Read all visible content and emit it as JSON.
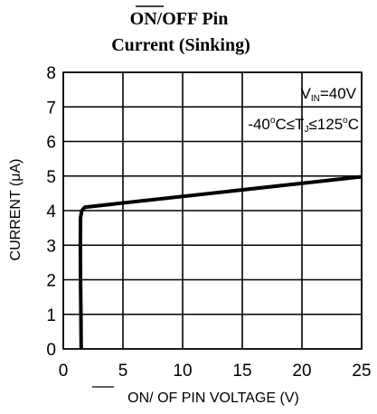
{
  "chart_data": {
    "type": "line",
    "title": {
      "overlined": "ON",
      "rest": "/OFF Pin",
      "line2": "Current (Sinking)"
    },
    "xlabel": {
      "overlined": "ON",
      "rest": "/ OF PIN VOLTAGE (V)"
    },
    "ylabel": "CURRENT (μA)",
    "xlim": [
      0,
      25
    ],
    "ylim": [
      0,
      8
    ],
    "x_ticks": [
      0,
      5,
      10,
      15,
      20,
      25
    ],
    "y_ticks": [
      0,
      1,
      2,
      3,
      4,
      5,
      6,
      7,
      8
    ],
    "grid": true,
    "annotations": {
      "line1": {
        "main": "V",
        "sub": "IN",
        "rest": "=40V"
      },
      "line2": {
        "part1": "-40",
        "sup1": "o",
        "part2": "C≤T",
        "sub": "J",
        "part3": "≤125",
        "sup2": "o",
        "part4": "C"
      }
    },
    "series": [
      {
        "x": [
          1.5,
          1.48,
          1.45,
          1.43,
          1.45,
          1.55,
          1.8,
          25
        ],
        "y": [
          0,
          1,
          2,
          3,
          3.8,
          4.0,
          4.1,
          4.98
        ],
        "color": "#000000"
      }
    ]
  }
}
